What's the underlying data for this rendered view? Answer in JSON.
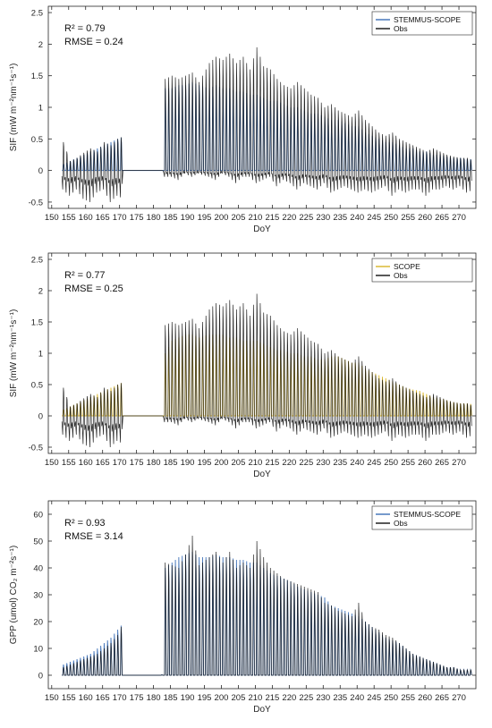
{
  "chart_data": [
    {
      "type": "line",
      "xlabel": "DoY",
      "ylabel": "SIF (mW m⁻²nm⁻¹s⁻¹)",
      "xlim": [
        149,
        275
      ],
      "ylim": [
        -0.6,
        2.6
      ],
      "xticks": [
        150,
        155,
        160,
        165,
        170,
        175,
        180,
        185,
        190,
        195,
        200,
        205,
        210,
        215,
        220,
        225,
        230,
        235,
        240,
        245,
        250,
        255,
        260,
        265,
        270
      ],
      "yticks": [
        -0.5,
        0,
        0.5,
        1,
        1.5,
        2,
        2.5
      ],
      "annotations": [
        "R² = 0.79",
        "RMSE = 0.24"
      ],
      "legend_position": "top-right",
      "series": [
        {
          "name": "STEMMUS-SCOPE",
          "color": "#3b6fb6",
          "x": [
            153,
            155,
            157,
            159,
            161,
            163,
            165,
            167,
            169,
            171,
            172,
            176,
            182,
            183,
            185,
            187,
            189,
            191,
            193,
            196,
            198,
            200,
            202,
            204,
            206,
            208,
            210,
            212,
            214,
            216,
            218,
            220,
            222,
            224,
            226,
            228,
            230,
            232,
            234,
            236,
            238,
            240,
            242,
            244,
            246,
            248,
            250,
            252,
            254,
            256,
            258,
            260,
            262,
            264,
            266,
            268,
            270,
            272,
            274
          ],
          "y": [
            0.1,
            0.15,
            0.2,
            0.25,
            0.3,
            0.35,
            0.4,
            0.45,
            0.5,
            0.55,
            0.02,
            0.0,
            0.0,
            1.3,
            1.3,
            1.35,
            1.35,
            1.4,
            1.35,
            1.3,
            1.35,
            1.3,
            1.3,
            1.25,
            1.25,
            1.2,
            1.2,
            1.15,
            1.1,
            1.1,
            1.05,
            1.0,
            1.0,
            0.95,
            0.9,
            0.9,
            0.85,
            0.8,
            0.8,
            0.75,
            0.7,
            0.7,
            0.6,
            0.55,
            0.5,
            0.45,
            0.45,
            0.4,
            0.35,
            0.35,
            0.3,
            0.3,
            0.25,
            0.25,
            0.22,
            0.2,
            0.2,
            0.18,
            0.18
          ]
        },
        {
          "name": "Obs",
          "color": "#111111",
          "x": [
            153,
            155,
            157,
            159,
            161,
            163,
            165,
            167,
            169,
            171,
            172,
            176,
            182,
            183,
            185,
            187,
            189,
            191,
            193,
            196,
            198,
            200,
            202,
            204,
            206,
            208,
            210,
            212,
            214,
            216,
            218,
            220,
            222,
            224,
            226,
            228,
            230,
            232,
            234,
            236,
            238,
            240,
            242,
            244,
            246,
            248,
            250,
            252,
            254,
            256,
            258,
            260,
            262,
            264,
            266,
            268,
            270,
            272,
            274
          ],
          "y": [
            0.45,
            0.15,
            0.2,
            0.28,
            0.35,
            0.3,
            0.45,
            0.4,
            0.5,
            0.55,
            0.02,
            0.0,
            0.0,
            1.45,
            1.5,
            1.45,
            1.5,
            1.55,
            1.4,
            1.7,
            1.8,
            1.75,
            1.85,
            1.7,
            1.8,
            1.6,
            1.95,
            1.65,
            1.6,
            1.45,
            1.35,
            1.3,
            1.4,
            1.3,
            1.2,
            1.15,
            1.0,
            1.05,
            0.95,
            0.9,
            0.85,
            0.95,
            0.8,
            0.7,
            0.6,
            0.55,
            0.6,
            0.5,
            0.45,
            0.4,
            0.35,
            0.3,
            0.35,
            0.3,
            0.25,
            0.22,
            0.2,
            0.2,
            0.15
          ],
          "y_min": [
            -0.3,
            -0.4,
            -0.3,
            -0.45,
            -0.5,
            -0.35,
            -0.3,
            -0.5,
            -0.4,
            -0.45,
            0.0,
            0.0,
            0.0,
            -0.1,
            -0.1,
            -0.15,
            -0.05,
            -0.1,
            -0.05,
            -0.1,
            -0.15,
            -0.05,
            -0.1,
            -0.2,
            -0.1,
            -0.1,
            -0.2,
            -0.15,
            -0.1,
            -0.25,
            -0.15,
            -0.2,
            -0.3,
            -0.2,
            -0.25,
            -0.3,
            -0.2,
            -0.35,
            -0.3,
            -0.25,
            -0.3,
            -0.35,
            -0.3,
            -0.35,
            -0.3,
            -0.25,
            -0.4,
            -0.3,
            -0.35,
            -0.3,
            -0.3,
            -0.4,
            -0.3,
            -0.3,
            -0.25,
            -0.3,
            -0.25,
            -0.35,
            -0.3
          ]
        }
      ]
    },
    {
      "type": "line",
      "xlabel": "DoY",
      "ylabel": "SIF (mW m⁻²nm⁻¹s⁻¹)",
      "xlim": [
        149,
        275
      ],
      "ylim": [
        -0.6,
        2.6
      ],
      "xticks": [
        150,
        155,
        160,
        165,
        170,
        175,
        180,
        185,
        190,
        195,
        200,
        205,
        210,
        215,
        220,
        225,
        230,
        235,
        240,
        245,
        250,
        255,
        260,
        265,
        270
      ],
      "yticks": [
        -0.5,
        0,
        0.5,
        1,
        1.5,
        2,
        2.5
      ],
      "annotations": [
        "R² = 0.77",
        "RMSE = 0.25"
      ],
      "legend_position": "top-right",
      "series": [
        {
          "name": "SCOPE",
          "color": "#d9b526",
          "x": [
            153,
            155,
            157,
            159,
            161,
            163,
            165,
            167,
            169,
            171,
            172,
            176,
            182,
            183,
            185,
            187,
            189,
            191,
            193,
            196,
            198,
            200,
            202,
            204,
            206,
            208,
            210,
            212,
            214,
            216,
            218,
            220,
            222,
            224,
            226,
            228,
            230,
            232,
            234,
            236,
            238,
            240,
            242,
            244,
            246,
            248,
            250,
            252,
            254,
            256,
            258,
            260,
            262,
            264,
            266,
            268,
            270,
            272,
            274
          ],
          "y": [
            0.1,
            0.15,
            0.2,
            0.25,
            0.3,
            0.35,
            0.4,
            0.45,
            0.5,
            0.55,
            0.02,
            0.0,
            0.0,
            1.0,
            1.2,
            1.25,
            1.3,
            1.3,
            1.25,
            1.3,
            1.3,
            1.3,
            1.25,
            1.25,
            1.2,
            1.2,
            1.2,
            1.15,
            1.1,
            1.05,
            1.05,
            1.0,
            1.0,
            0.95,
            0.95,
            0.9,
            0.9,
            0.95,
            0.95,
            0.9,
            0.85,
            0.85,
            0.75,
            0.7,
            0.65,
            0.6,
            0.55,
            0.5,
            0.45,
            0.42,
            0.4,
            0.35,
            0.3,
            0.28,
            0.25,
            0.22,
            0.2,
            0.2,
            0.18
          ]
        },
        {
          "name": "Obs",
          "color": "#111111",
          "x": [
            153,
            155,
            157,
            159,
            161,
            163,
            165,
            167,
            169,
            171,
            172,
            176,
            182,
            183,
            185,
            187,
            189,
            191,
            193,
            196,
            198,
            200,
            202,
            204,
            206,
            208,
            210,
            212,
            214,
            216,
            218,
            220,
            222,
            224,
            226,
            228,
            230,
            232,
            234,
            236,
            238,
            240,
            242,
            244,
            246,
            248,
            250,
            252,
            254,
            256,
            258,
            260,
            262,
            264,
            266,
            268,
            270,
            272,
            274
          ],
          "y": [
            0.45,
            0.15,
            0.2,
            0.28,
            0.35,
            0.3,
            0.45,
            0.4,
            0.5,
            0.55,
            0.02,
            0.0,
            0.0,
            1.45,
            1.5,
            1.45,
            1.5,
            1.55,
            1.4,
            1.7,
            1.8,
            1.75,
            1.85,
            1.7,
            1.8,
            1.6,
            1.95,
            1.65,
            1.6,
            1.45,
            1.35,
            1.3,
            1.4,
            1.3,
            1.2,
            1.15,
            1.0,
            1.05,
            0.95,
            0.9,
            0.85,
            0.95,
            0.8,
            0.7,
            0.6,
            0.55,
            0.6,
            0.5,
            0.45,
            0.4,
            0.35,
            0.3,
            0.35,
            0.3,
            0.25,
            0.22,
            0.2,
            0.2,
            0.15
          ],
          "y_min": [
            -0.3,
            -0.4,
            -0.3,
            -0.45,
            -0.5,
            -0.35,
            -0.3,
            -0.5,
            -0.4,
            -0.45,
            0.0,
            0.0,
            0.0,
            -0.1,
            -0.1,
            -0.15,
            -0.05,
            -0.1,
            -0.05,
            -0.1,
            -0.15,
            -0.05,
            -0.1,
            -0.2,
            -0.1,
            -0.1,
            -0.2,
            -0.15,
            -0.1,
            -0.25,
            -0.15,
            -0.2,
            -0.3,
            -0.2,
            -0.25,
            -0.3,
            -0.2,
            -0.35,
            -0.3,
            -0.25,
            -0.3,
            -0.35,
            -0.3,
            -0.35,
            -0.3,
            -0.25,
            -0.4,
            -0.3,
            -0.35,
            -0.3,
            -0.3,
            -0.4,
            -0.3,
            -0.3,
            -0.25,
            -0.3,
            -0.25,
            -0.35,
            -0.3
          ]
        }
      ]
    },
    {
      "type": "line",
      "xlabel": "DoY",
      "ylabel": "GPP (umol) CO₂ m⁻²s⁻¹)",
      "xlim": [
        149,
        275
      ],
      "ylim": [
        -5,
        65
      ],
      "xticks": [
        150,
        155,
        160,
        165,
        170,
        175,
        180,
        185,
        190,
        195,
        200,
        205,
        210,
        215,
        220,
        225,
        230,
        235,
        240,
        245,
        250,
        255,
        260,
        265,
        270
      ],
      "yticks": [
        0,
        10,
        20,
        30,
        40,
        50,
        60
      ],
      "annotations": [
        "R² = 0.93",
        "RMSE = 3.14"
      ],
      "legend_position": "top-right",
      "series": [
        {
          "name": "STEMMUS-SCOPE",
          "color": "#3b6fb6",
          "x": [
            153,
            155,
            157,
            159,
            161,
            163,
            165,
            167,
            169,
            171,
            172,
            176,
            182,
            183,
            185,
            187,
            189,
            191,
            193,
            196,
            198,
            200,
            202,
            204,
            206,
            208,
            210,
            212,
            214,
            216,
            218,
            220,
            222,
            224,
            226,
            228,
            230,
            232,
            234,
            236,
            238,
            240,
            242,
            244,
            246,
            248,
            250,
            252,
            254,
            256,
            258,
            260,
            262,
            264,
            266,
            268,
            270,
            272,
            274
          ],
          "y": [
            4,
            5,
            6,
            7,
            8,
            10,
            12,
            14,
            17,
            20,
            0.5,
            0.2,
            0.2,
            40,
            42,
            44,
            45,
            46,
            44,
            44,
            45,
            44,
            44,
            43,
            43,
            42,
            42,
            40,
            38,
            37,
            36,
            35,
            33,
            32,
            31,
            30,
            29,
            26,
            25,
            24,
            23,
            22,
            20,
            18,
            16,
            14,
            13,
            12,
            10,
            8,
            7,
            6,
            5,
            4,
            3,
            3,
            2,
            2,
            2
          ]
        },
        {
          "name": "Obs",
          "color": "#111111",
          "x": [
            153,
            155,
            157,
            159,
            161,
            163,
            165,
            167,
            169,
            171,
            172,
            176,
            182,
            183,
            185,
            187,
            189,
            191,
            193,
            196,
            198,
            200,
            202,
            204,
            206,
            208,
            210,
            212,
            214,
            216,
            218,
            220,
            222,
            224,
            226,
            228,
            230,
            232,
            234,
            236,
            238,
            240,
            242,
            244,
            246,
            248,
            250,
            252,
            254,
            256,
            258,
            260,
            262,
            264,
            266,
            268,
            270,
            272,
            274
          ],
          "y": [
            3,
            4,
            5,
            6,
            7,
            8,
            10,
            12,
            15,
            21,
            0.3,
            0.1,
            0.1,
            42,
            41,
            40,
            45,
            52,
            41,
            44,
            46,
            42,
            46,
            40,
            42,
            40,
            50,
            44,
            40,
            38,
            36,
            35,
            34,
            33,
            32,
            31,
            27,
            26,
            24,
            23,
            22,
            27,
            20,
            18,
            17,
            15,
            14,
            12,
            10,
            8,
            7,
            6,
            5,
            4,
            3,
            3,
            2,
            2,
            2
          ]
        }
      ]
    }
  ]
}
